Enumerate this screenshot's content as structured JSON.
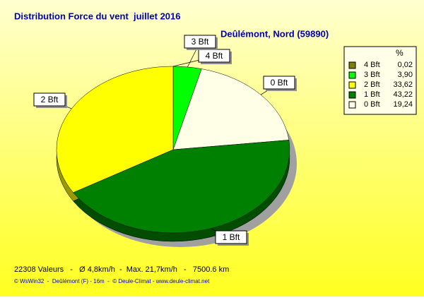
{
  "chart_data": {
    "type": "pie",
    "title": "Distribution Force du vent  juillet 2016",
    "subtitle": "Deûlémont, Nord (59890)",
    "categories": [
      "4 Bft",
      "3 Bft",
      "2 Bft",
      "1 Bft",
      "0 Bft"
    ],
    "values": [
      0.02,
      3.9,
      33.62,
      43.22,
      19.24
    ],
    "value_labels": [
      "0,02",
      "3,90",
      "33,62",
      "43,22",
      "19,24"
    ],
    "colors": [
      "#808000",
      "#00ff00",
      "#ffff00",
      "#008000",
      "#ffffe8"
    ],
    "legend_title": "%",
    "footer": [
      "22308 Valeurs   -   Ø 4,8km/h  -  Max. 21,7km/h   -   7500.6 km",
      "© WsWin32  -  Deûlémont (F) - 16m  -  © Deule-Climat - www.deule-climat.net"
    ]
  }
}
